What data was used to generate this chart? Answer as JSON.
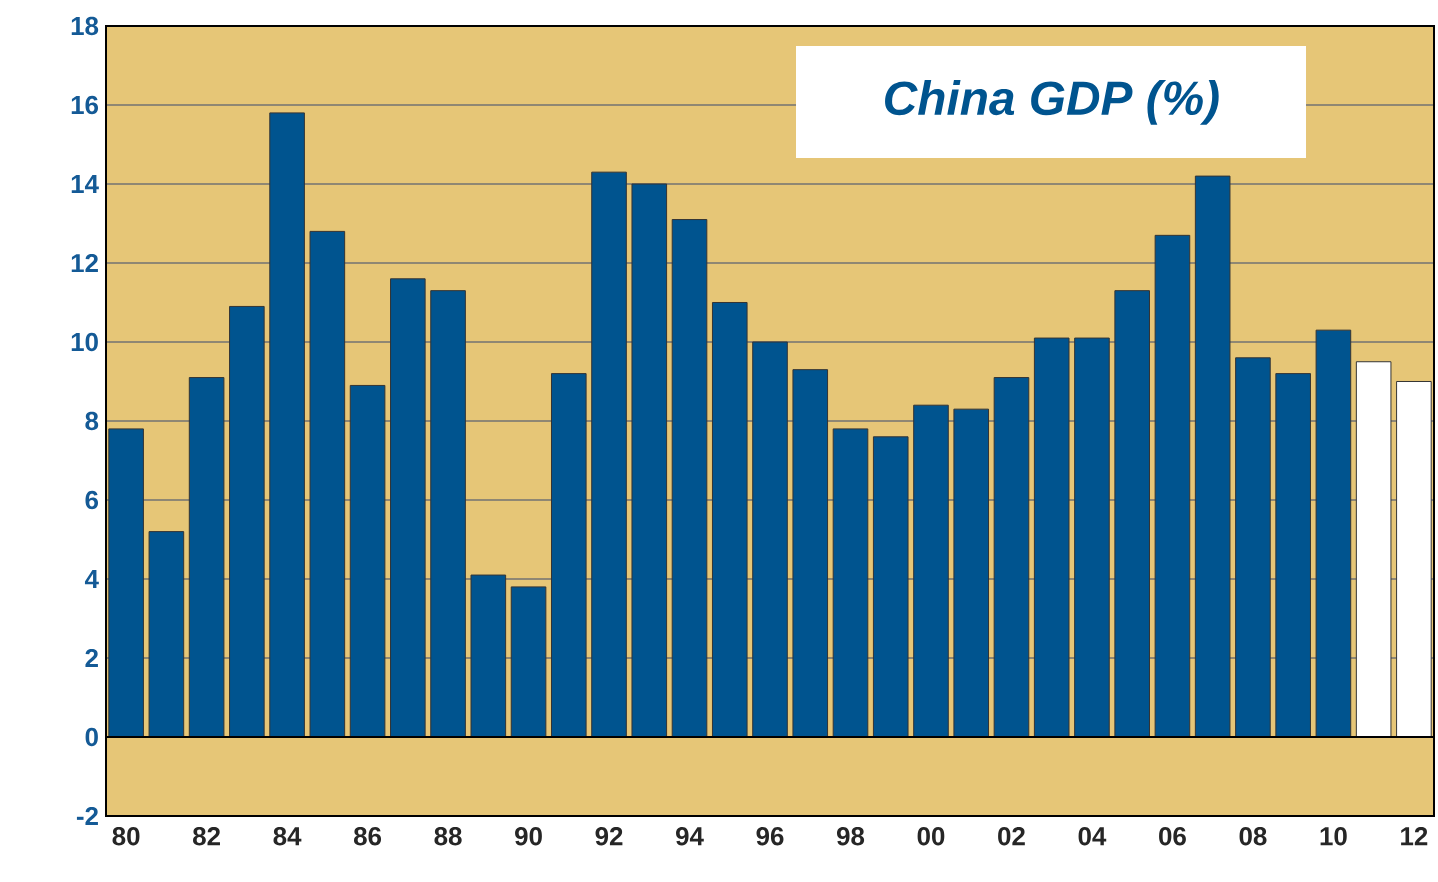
{
  "chart_data": {
    "type": "bar",
    "title": "China GDP (%)",
    "categories": [
      "80",
      null,
      "82",
      null,
      "84",
      null,
      "86",
      null,
      "88",
      null,
      "90",
      null,
      "92",
      null,
      "94",
      null,
      "96",
      null,
      "98",
      null,
      "00",
      null,
      "02",
      null,
      "04",
      null,
      "06",
      null,
      "08",
      null,
      "10",
      null,
      "12"
    ],
    "values": [
      7.8,
      5.2,
      9.1,
      10.9,
      15.8,
      12.8,
      8.9,
      11.6,
      11.3,
      4.1,
      3.8,
      9.2,
      14.3,
      14.0,
      13.1,
      11.0,
      10.0,
      9.3,
      7.8,
      7.6,
      8.4,
      8.3,
      9.1,
      10.1,
      10.1,
      11.3,
      12.7,
      14.2,
      9.6,
      9.2,
      10.3,
      9.5,
      9.0
    ],
    "colors": [
      "#00548f",
      "#00548f",
      "#00548f",
      "#00548f",
      "#00548f",
      "#00548f",
      "#00548f",
      "#00548f",
      "#00548f",
      "#00548f",
      "#00548f",
      "#00548f",
      "#00548f",
      "#00548f",
      "#00548f",
      "#00548f",
      "#00548f",
      "#00548f",
      "#00548f",
      "#00548f",
      "#00548f",
      "#00548f",
      "#00548f",
      "#00548f",
      "#00548f",
      "#00548f",
      "#00548f",
      "#00548f",
      "#00548f",
      "#00548f",
      "#00548f",
      "#ffffff",
      "#ffffff"
    ],
    "ylim": [
      -2,
      18
    ],
    "yticks": [
      -2,
      0,
      2,
      4,
      6,
      8,
      10,
      12,
      14,
      16,
      18
    ],
    "grid": "y"
  }
}
